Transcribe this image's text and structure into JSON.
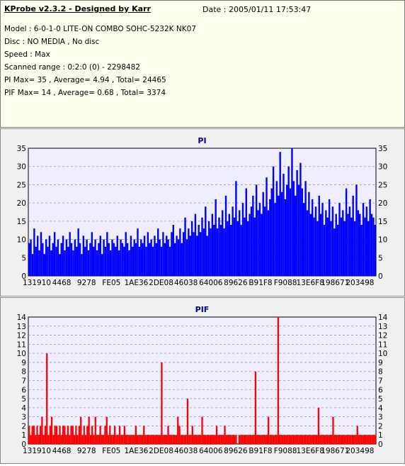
{
  "header": {
    "title": "KProbe v2.3.2 - Designed by Karr",
    "date": "Date : 2005/01/11 17:53:47",
    "lines": [
      "Model : 6-0-1-0 LITE-ON COMBO SOHC-5232K NK07",
      "Disc : NO MEDIA , No disc",
      "Speed : Max",
      "Scanned range : 0:2:0 (0) - 2298482",
      "PI Max= 35 , Average= 4.94 , Total= 24465",
      "PIF Max= 14 , Average= 0.68 , Total= 3374"
    ]
  },
  "colors": {
    "pi": "#0000ff",
    "pif": "#ff0000",
    "plot_bg": "#eeeeff",
    "grid": "#999999"
  },
  "chart_data": [
    {
      "type": "bar",
      "title": "PI",
      "ylim": [
        0,
        35
      ],
      "yticks": [
        0,
        5,
        10,
        15,
        20,
        25,
        30,
        35
      ],
      "xtick_labels": [
        "131910",
        "4468",
        "9278",
        "FE05",
        "1AE36",
        "2DE08",
        "46038",
        "64006",
        "89626",
        "B91F8",
        "F9088",
        "13E6F8",
        "198671",
        "203498"
      ],
      "values": [
        9,
        10,
        6,
        13,
        8,
        11,
        7,
        12,
        9,
        6,
        10,
        8,
        11,
        7,
        9,
        12,
        8,
        10,
        6,
        9,
        11,
        7,
        10,
        8,
        12,
        9,
        7,
        10,
        8,
        13,
        9,
        6,
        11,
        8,
        10,
        7,
        9,
        12,
        8,
        10,
        7,
        9,
        11,
        6,
        10,
        8,
        12,
        9,
        7,
        10,
        9,
        8,
        11,
        7,
        10,
        9,
        8,
        12,
        9,
        7,
        11,
        8,
        10,
        9,
        13,
        8,
        10,
        9,
        11,
        8,
        12,
        9,
        10,
        8,
        11,
        9,
        13,
        10,
        8,
        12,
        9,
        11,
        10,
        8,
        12,
        14,
        9,
        11,
        10,
        13,
        9,
        12,
        16,
        10,
        13,
        11,
        15,
        12,
        17,
        11,
        14,
        12,
        16,
        13,
        19,
        11,
        15,
        13,
        17,
        14,
        21,
        13,
        16,
        14,
        18,
        13,
        22,
        15,
        17,
        14,
        19,
        16,
        26,
        15,
        18,
        14,
        20,
        16,
        24,
        15,
        17,
        19,
        22,
        16,
        25,
        18,
        20,
        17,
        23,
        19,
        27,
        18,
        21,
        24,
        30,
        20,
        26,
        22,
        34,
        23,
        28,
        21,
        25,
        30,
        24,
        35,
        26,
        22,
        29,
        25,
        31,
        24,
        20,
        26,
        18,
        23,
        17,
        21,
        16,
        19,
        15,
        22,
        17,
        20,
        14,
        18,
        16,
        21,
        15,
        19,
        13,
        17,
        14,
        20,
        16,
        18,
        15,
        24,
        17,
        19,
        16,
        22,
        15,
        25,
        18,
        17,
        14,
        20,
        16,
        19,
        15,
        21,
        17,
        16,
        14
      ]
    },
    {
      "type": "bar",
      "title": "PIF",
      "ylim": [
        0,
        14
      ],
      "yticks": [
        0,
        1,
        2,
        3,
        4,
        5,
        6,
        7,
        8,
        9,
        10,
        11,
        12,
        13,
        14
      ],
      "xtick_labels": [
        "131910",
        "4468",
        "9278",
        "FE05",
        "1AE36",
        "2DE08",
        "46038",
        "64006",
        "89626",
        "B91F8",
        "F9088",
        "13E6F8",
        "198671",
        "203498"
      ],
      "values": [
        2,
        1,
        2,
        2,
        1,
        2,
        1,
        2,
        3,
        1,
        2,
        10,
        1,
        2,
        3,
        1,
        2,
        2,
        1,
        2,
        1,
        2,
        2,
        1,
        2,
        1,
        2,
        2,
        1,
        2,
        1,
        2,
        3,
        1,
        2,
        1,
        2,
        3,
        1,
        2,
        1,
        3,
        1,
        1,
        2,
        1,
        1,
        2,
        3,
        1,
        2,
        1,
        1,
        2,
        1,
        1,
        2,
        1,
        1,
        2,
        1,
        1,
        1,
        1,
        1,
        1,
        2,
        1,
        1,
        1,
        1,
        2,
        1,
        1,
        1,
        1,
        1,
        1,
        1,
        1,
        1,
        1,
        9,
        1,
        1,
        1,
        2,
        1,
        1,
        1,
        1,
        1,
        3,
        2,
        1,
        1,
        1,
        1,
        5,
        1,
        1,
        2,
        1,
        1,
        1,
        1,
        1,
        3,
        1,
        1,
        1,
        1,
        1,
        1,
        1,
        1,
        2,
        1,
        1,
        1,
        1,
        2,
        1,
        1,
        1,
        1,
        1,
        1,
        1,
        0,
        1,
        1,
        1,
        1,
        1,
        1,
        1,
        1,
        1,
        1,
        8,
        1,
        1,
        1,
        1,
        1,
        1,
        1,
        3,
        1,
        1,
        1,
        1,
        1,
        14,
        1,
        1,
        1,
        1,
        1,
        1,
        1,
        1,
        1,
        1,
        1,
        1,
        1,
        1,
        1,
        1,
        1,
        1,
        1,
        1,
        1,
        1,
        1,
        1,
        4,
        1,
        1,
        1,
        1,
        1,
        1,
        1,
        1,
        3,
        1,
        1,
        1,
        1,
        1,
        1,
        1,
        1,
        1,
        1,
        1,
        1,
        1,
        1,
        2,
        1,
        1,
        1,
        1,
        1,
        1,
        1,
        1,
        1,
        1,
        1
      ]
    }
  ]
}
